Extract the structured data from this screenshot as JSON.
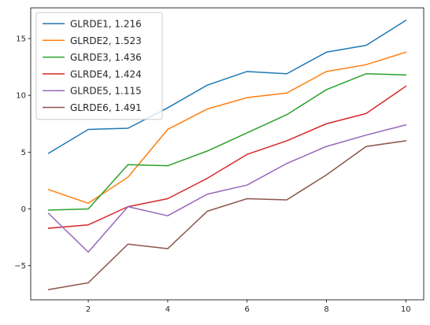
{
  "chart_data": {
    "type": "line",
    "title": "",
    "xlabel": "",
    "ylabel": "",
    "x": [
      1,
      2,
      3,
      4,
      5,
      6,
      7,
      8,
      9,
      10
    ],
    "xlim": [
      0.55,
      10.45
    ],
    "ylim": [
      -8.0,
      17.7
    ],
    "xticks": [
      2,
      4,
      6,
      8,
      10
    ],
    "yticks": [
      -5,
      0,
      5,
      10,
      15
    ],
    "xtick_labels": [
      "2",
      "4",
      "6",
      "8",
      "10"
    ],
    "ytick_labels": [
      "−5",
      "0",
      "5",
      "10",
      "15"
    ],
    "grid": false,
    "legend_position": "top-left",
    "series": [
      {
        "name": "GLRDE1, 1.216",
        "color": "#1f77b4",
        "values": [
          4.9,
          7.0,
          7.1,
          8.9,
          10.9,
          12.1,
          11.9,
          13.8,
          14.4,
          16.6
        ]
      },
      {
        "name": "GLRDE2, 1.523",
        "color": "#ff7f0e",
        "values": [
          1.7,
          0.5,
          2.8,
          7.0,
          8.8,
          9.8,
          10.2,
          12.1,
          12.7,
          13.8
        ]
      },
      {
        "name": "GLRDE3, 1.436",
        "color": "#2ca02c",
        "values": [
          -0.1,
          0.0,
          3.9,
          3.8,
          5.1,
          6.7,
          8.3,
          10.5,
          11.9,
          11.8
        ]
      },
      {
        "name": "GLRDE4, 1.424",
        "color": "#d62728",
        "values": [
          -1.7,
          -1.4,
          0.2,
          0.9,
          2.7,
          4.8,
          6.0,
          7.5,
          8.4,
          10.8
        ]
      },
      {
        "name": "GLRDE5, 1.115",
        "color": "#9467bd",
        "values": [
          -0.4,
          -3.8,
          0.2,
          -0.6,
          1.3,
          2.1,
          4.0,
          5.5,
          6.5,
          7.4
        ]
      },
      {
        "name": "GLRDE6, 1.491",
        "color": "#8c564b",
        "values": [
          -7.1,
          -6.5,
          -3.1,
          -3.5,
          -0.2,
          0.9,
          0.8,
          3.0,
          5.5,
          6.0
        ]
      }
    ]
  }
}
